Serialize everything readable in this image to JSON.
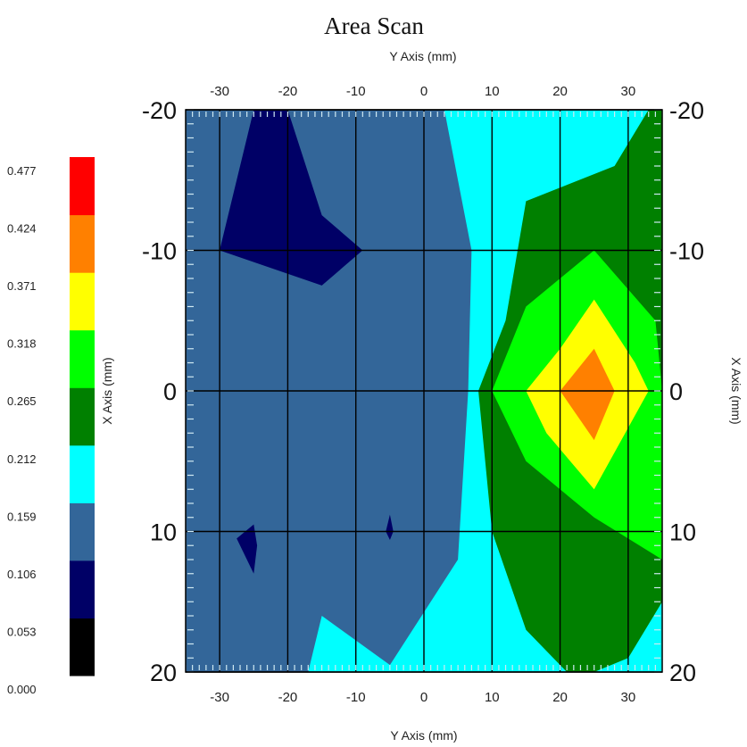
{
  "chart_data": {
    "type": "heatmap",
    "title": "Area Scan",
    "x_axis_title_top": "Y Axis (mm)",
    "x_axis_title_bottom": "Y Axis (mm)",
    "y_axis_title_left": "X Axis (mm)",
    "y_axis_title_right": "X Axis (mm)",
    "x_ticks_top": [
      "-30",
      "-20",
      "-10",
      "0",
      "10",
      "20",
      "30"
    ],
    "x_ticks_bottom": [
      "-30",
      "-20",
      "-10",
      "0",
      "10",
      "20",
      "30"
    ],
    "y_ticks_left": [
      "-20",
      "-10",
      "0",
      "10",
      "20"
    ],
    "y_ticks_right": [
      "-20",
      "-10",
      "0",
      "10",
      "20"
    ],
    "xlim": [
      -35,
      35
    ],
    "ylim": [
      -20,
      20
    ],
    "x_tick_values": [
      -30,
      -20,
      -10,
      0,
      10,
      20,
      30
    ],
    "y_tick_values": [
      -20,
      -10,
      0,
      10,
      20
    ],
    "grid": true,
    "legend_position": "left",
    "levels": [
      {
        "from": "0.000",
        "to": "0.053",
        "color": "#000000"
      },
      {
        "from": "0.053",
        "to": "0.106",
        "color": "#000066"
      },
      {
        "from": "0.106",
        "to": "0.159",
        "color": "#336699"
      },
      {
        "from": "0.159",
        "to": "0.212",
        "color": "#00ffff"
      },
      {
        "from": "0.212",
        "to": "0.265",
        "color": "#008000"
      },
      {
        "from": "0.265",
        "to": "0.318",
        "color": "#00ff00"
      },
      {
        "from": "0.318",
        "to": "0.371",
        "color": "#ffff00"
      },
      {
        "from": "0.371",
        "to": "0.424",
        "color": "#ff8000"
      },
      {
        "from": "0.424",
        "to": "0.477",
        "color": "#ff0000"
      }
    ],
    "legend_labels": [
      "0.477",
      "0.424",
      "0.371",
      "0.318",
      "0.265",
      "0.212",
      "0.159",
      "0.106",
      "0.053",
      "0.000"
    ],
    "regions": [
      {
        "level": 2,
        "points": [
          [
            -35,
            -20
          ],
          [
            35,
            -20
          ],
          [
            35,
            20
          ],
          [
            -35,
            20
          ]
        ]
      },
      {
        "level": 3,
        "points": [
          [
            3,
            -20
          ],
          [
            35,
            -20
          ],
          [
            35,
            20
          ],
          [
            -17,
            20
          ],
          [
            -15,
            16
          ],
          [
            -5,
            19.5
          ],
          [
            5,
            12
          ],
          [
            6.5,
            0
          ],
          [
            7,
            -10
          ],
          [
            5,
            -15
          ]
        ]
      },
      {
        "level": 4,
        "points": [
          [
            35,
            -20
          ],
          [
            33,
            -20
          ],
          [
            28,
            -16
          ],
          [
            15,
            -13.5
          ],
          [
            12,
            -5
          ],
          [
            8,
            0
          ],
          [
            10,
            10
          ],
          [
            15,
            17
          ],
          [
            21,
            20
          ],
          [
            25,
            20
          ],
          [
            30,
            19
          ],
          [
            35,
            15
          ]
        ]
      },
      {
        "level": 5,
        "points": [
          [
            25,
            -10
          ],
          [
            34,
            -5
          ],
          [
            35,
            0
          ],
          [
            35,
            12
          ],
          [
            25,
            9
          ],
          [
            15,
            5
          ],
          [
            10,
            0
          ],
          [
            15,
            -6
          ]
        ]
      },
      {
        "level": 6,
        "points": [
          [
            25,
            -6.5
          ],
          [
            31,
            -2
          ],
          [
            33,
            0
          ],
          [
            25,
            7
          ],
          [
            18,
            3
          ],
          [
            15,
            0
          ],
          [
            20,
            -3
          ]
        ]
      },
      {
        "level": 7,
        "points": [
          [
            25,
            -3
          ],
          [
            28,
            0
          ],
          [
            25,
            3.5
          ],
          [
            20,
            0
          ]
        ]
      },
      {
        "level": 1,
        "points": [
          [
            -25,
            -20
          ],
          [
            -20,
            -20
          ],
          [
            -15,
            -12.5
          ],
          [
            -9,
            -10
          ],
          [
            -15,
            -7.5
          ],
          [
            -30,
            -10
          ]
        ]
      },
      {
        "level": 1,
        "points": [
          [
            -27.5,
            10.5
          ],
          [
            -25,
            9.5
          ],
          [
            -24.5,
            11
          ],
          [
            -25,
            13
          ]
        ]
      },
      {
        "level": 1,
        "points": [
          [
            -5,
            8.8
          ],
          [
            -4.5,
            10
          ],
          [
            -5,
            10.6
          ],
          [
            -5.6,
            10
          ]
        ]
      }
    ]
  }
}
